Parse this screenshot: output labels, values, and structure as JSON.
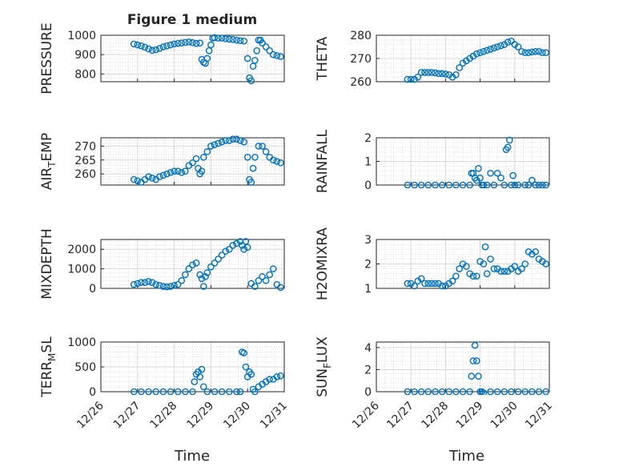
{
  "title": "Figure 1 medium",
  "xlabel": "Time",
  "x_ticks": [
    "12/26",
    "12/27",
    "12/28",
    "12/29",
    "12/30",
    "12/31"
  ],
  "marker_color": "#0072BD",
  "chart_data": [
    {
      "type": "scatter",
      "ylabel": "PRESSURE",
      "ylim": [
        760,
        1000
      ],
      "yticks": [
        800,
        900,
        1000
      ],
      "grid": true,
      "x": [
        0.9,
        1.0,
        1.1,
        1.2,
        1.3,
        1.4,
        1.5,
        1.6,
        1.7,
        1.8,
        1.9,
        2.0,
        2.1,
        2.2,
        2.3,
        2.4,
        2.5,
        2.6,
        2.7,
        2.75,
        2.8,
        2.85,
        2.9,
        2.95,
        3.0,
        3.05,
        3.1,
        3.2,
        3.3,
        3.4,
        3.5,
        3.6,
        3.7,
        3.8,
        3.9,
        4.0,
        4.05,
        4.1,
        4.15,
        4.2,
        4.25,
        4.3,
        4.35,
        4.4,
        4.5,
        4.6,
        4.7,
        4.8,
        4.9
      ],
      "y": [
        955,
        950,
        945,
        938,
        930,
        922,
        925,
        932,
        940,
        945,
        950,
        955,
        958,
        960,
        963,
        965,
        962,
        958,
        960,
        875,
        860,
        855,
        880,
        920,
        950,
        985,
        988,
        985,
        985,
        982,
        980,
        978,
        975,
        972,
        970,
        880,
        780,
        765,
        840,
        870,
        920,
        975,
        975,
        960,
        940,
        920,
        900,
        895,
        890
      ]
    },
    {
      "type": "scatter",
      "ylabel": "THETA",
      "ylim": [
        260,
        280
      ],
      "yticks": [
        260,
        270,
        280
      ],
      "grid": true,
      "x": [
        0.9,
        1.0,
        1.1,
        1.2,
        1.3,
        1.4,
        1.5,
        1.6,
        1.7,
        1.8,
        1.9,
        2.0,
        2.1,
        2.2,
        2.3,
        2.4,
        2.5,
        2.6,
        2.7,
        2.8,
        2.9,
        3.0,
        3.1,
        3.2,
        3.3,
        3.4,
        3.5,
        3.6,
        3.7,
        3.8,
        3.9,
        4.0,
        4.1,
        4.2,
        4.3,
        4.4,
        4.5,
        4.6,
        4.7,
        4.8,
        4.9
      ],
      "y": [
        261,
        261,
        261,
        262,
        264,
        264,
        264,
        264,
        263.8,
        263.5,
        263.5,
        263.3,
        263,
        262,
        263,
        266,
        268,
        269,
        270,
        271,
        272,
        272.5,
        273,
        273.5,
        274,
        274.5,
        275,
        275.5,
        276,
        277,
        277.5,
        276,
        275,
        273,
        272.5,
        272.5,
        272.8,
        273,
        273,
        272.5,
        272.5
      ]
    },
    {
      "type": "scatter",
      "ylabel": "AIR_TEMP",
      "ylim": [
        256,
        273
      ],
      "yticks": [
        260,
        265,
        270
      ],
      "grid": true,
      "x": [
        0.9,
        1.0,
        1.1,
        1.2,
        1.3,
        1.4,
        1.5,
        1.6,
        1.7,
        1.8,
        1.9,
        2.0,
        2.1,
        2.2,
        2.3,
        2.4,
        2.5,
        2.6,
        2.65,
        2.7,
        2.75,
        2.8,
        2.9,
        3.0,
        3.1,
        3.2,
        3.3,
        3.4,
        3.5,
        3.6,
        3.7,
        3.8,
        3.9,
        4.0,
        4.05,
        4.1,
        4.15,
        4.2,
        4.3,
        4.4,
        4.5,
        4.6,
        4.7,
        4.8,
        4.9
      ],
      "y": [
        258,
        257.5,
        257,
        258,
        259,
        258.5,
        258,
        259,
        259.5,
        260,
        260.5,
        261,
        261,
        260.5,
        261,
        263,
        264,
        265.5,
        262,
        260,
        261,
        266,
        268,
        270,
        270.5,
        271,
        271.5,
        272,
        272,
        272.5,
        272.5,
        272,
        271.5,
        266,
        258,
        257,
        262,
        266,
        270,
        270,
        268,
        266,
        265,
        264.5,
        264
      ]
    },
    {
      "type": "scatter",
      "ylabel": "RAINFALL",
      "ylim": [
        0,
        2
      ],
      "yticks": [
        0,
        1,
        2
      ],
      "grid": true,
      "x": [
        0.9,
        1.1,
        1.3,
        1.5,
        1.7,
        1.9,
        2.1,
        2.3,
        2.5,
        2.7,
        2.75,
        2.8,
        2.85,
        2.9,
        2.95,
        3.0,
        3.05,
        3.1,
        3.2,
        3.3,
        3.4,
        3.5,
        3.6,
        3.7,
        3.75,
        3.8,
        3.85,
        3.9,
        3.95,
        4.0,
        4.1,
        4.3,
        4.4,
        4.5,
        4.6,
        4.7,
        4.8,
        4.9
      ],
      "y": [
        0,
        0,
        0,
        0,
        0,
        0,
        0,
        0,
        0,
        0,
        0.5,
        0.5,
        0.3,
        0.2,
        0.7,
        0.3,
        0,
        0,
        0,
        0.5,
        0,
        0.5,
        0.3,
        0,
        1.5,
        1.6,
        1.9,
        0,
        0.4,
        0,
        0,
        0,
        0,
        0.2,
        0,
        0,
        0,
        0
      ]
    },
    {
      "type": "scatter",
      "ylabel": "MIXDEPTH",
      "ylim": [
        0,
        2500
      ],
      "yticks": [
        0,
        1000,
        2000
      ],
      "grid": true,
      "x": [
        0.9,
        1.0,
        1.1,
        1.2,
        1.3,
        1.4,
        1.5,
        1.6,
        1.7,
        1.8,
        1.9,
        2.0,
        2.1,
        2.2,
        2.3,
        2.4,
        2.5,
        2.6,
        2.7,
        2.75,
        2.8,
        2.85,
        2.9,
        3.0,
        3.1,
        3.2,
        3.3,
        3.4,
        3.5,
        3.6,
        3.7,
        3.8,
        3.85,
        3.9,
        3.95,
        4.0,
        4.1,
        4.2,
        4.3,
        4.4,
        4.5,
        4.6,
        4.7,
        4.8,
        4.9
      ],
      "y": [
        200,
        250,
        300,
        300,
        350,
        300,
        200,
        150,
        100,
        80,
        100,
        150,
        200,
        400,
        700,
        1000,
        1200,
        1300,
        700,
        500,
        100,
        600,
        800,
        1100,
        1300,
        1500,
        1700,
        1900,
        2000,
        2200,
        2300,
        2400,
        2200,
        2000,
        2400,
        2100,
        250,
        100,
        400,
        600,
        400,
        700,
        1000,
        200,
        50
      ]
    },
    {
      "type": "scatter",
      "ylabel": "H2OMIXRA",
      "ylim": [
        1,
        3
      ],
      "yticks": [
        1,
        2,
        3
      ],
      "grid": true,
      "x": [
        0.9,
        1.0,
        1.1,
        1.2,
        1.3,
        1.4,
        1.5,
        1.6,
        1.7,
        1.8,
        1.9,
        2.0,
        2.1,
        2.2,
        2.3,
        2.4,
        2.5,
        2.6,
        2.7,
        2.8,
        2.9,
        3.0,
        3.1,
        3.15,
        3.2,
        3.3,
        3.4,
        3.5,
        3.6,
        3.7,
        3.8,
        3.9,
        4.0,
        4.1,
        4.2,
        4.3,
        4.4,
        4.5,
        4.6,
        4.7,
        4.8,
        4.9
      ],
      "y": [
        1.2,
        1.2,
        1.1,
        1.3,
        1.4,
        1.2,
        1.2,
        1.2,
        1.2,
        1.2,
        1.1,
        1.1,
        1.2,
        1.3,
        1.5,
        1.8,
        2.0,
        1.9,
        1.6,
        1.5,
        1.5,
        2.1,
        2.0,
        2.7,
        1.6,
        2.2,
        1.8,
        1.8,
        1.7,
        1.7,
        1.7,
        1.8,
        1.9,
        1.7,
        1.8,
        2.0,
        2.5,
        2.4,
        2.5,
        2.2,
        2.1,
        2.0
      ]
    },
    {
      "type": "scatter",
      "ylabel": "TERR_MSL",
      "ylim": [
        0,
        1000
      ],
      "yticks": [
        0,
        500,
        1000
      ],
      "grid": true,
      "x": [
        0.9,
        1.1,
        1.3,
        1.5,
        1.7,
        1.9,
        2.1,
        2.3,
        2.5,
        2.55,
        2.6,
        2.65,
        2.7,
        2.75,
        2.8,
        2.9,
        3.1,
        3.3,
        3.5,
        3.7,
        3.8,
        3.85,
        3.9,
        3.95,
        4.0,
        4.05,
        4.1,
        4.15,
        4.2,
        4.3,
        4.4,
        4.5,
        4.6,
        4.7,
        4.8,
        4.9
      ],
      "y": [
        0,
        0,
        0,
        0,
        0,
        0,
        0,
        0,
        0,
        200,
        350,
        400,
        300,
        450,
        100,
        0,
        0,
        0,
        0,
        0,
        0,
        800,
        780,
        500,
        300,
        400,
        350,
        50,
        0,
        100,
        150,
        200,
        250,
        250,
        300,
        320
      ]
    },
    {
      "type": "scatter",
      "ylabel": "SUN_FLUX",
      "ylim": [
        0,
        4.5
      ],
      "yticks": [
        0,
        2,
        4
      ],
      "grid": true,
      "x": [
        0.9,
        1.1,
        1.3,
        1.5,
        1.7,
        1.9,
        2.1,
        2.3,
        2.5,
        2.7,
        2.75,
        2.8,
        2.85,
        2.9,
        2.95,
        3.0,
        3.05,
        3.1,
        3.3,
        3.5,
        3.7,
        3.9,
        4.1,
        4.3,
        4.5,
        4.7,
        4.9
      ],
      "y": [
        0,
        0,
        0,
        0,
        0,
        0,
        0,
        0,
        0,
        0,
        1.4,
        2.8,
        4.2,
        2.8,
        1.4,
        0,
        0,
        -0.1,
        0,
        0,
        0,
        0,
        0,
        0,
        0,
        0,
        0
      ]
    }
  ]
}
